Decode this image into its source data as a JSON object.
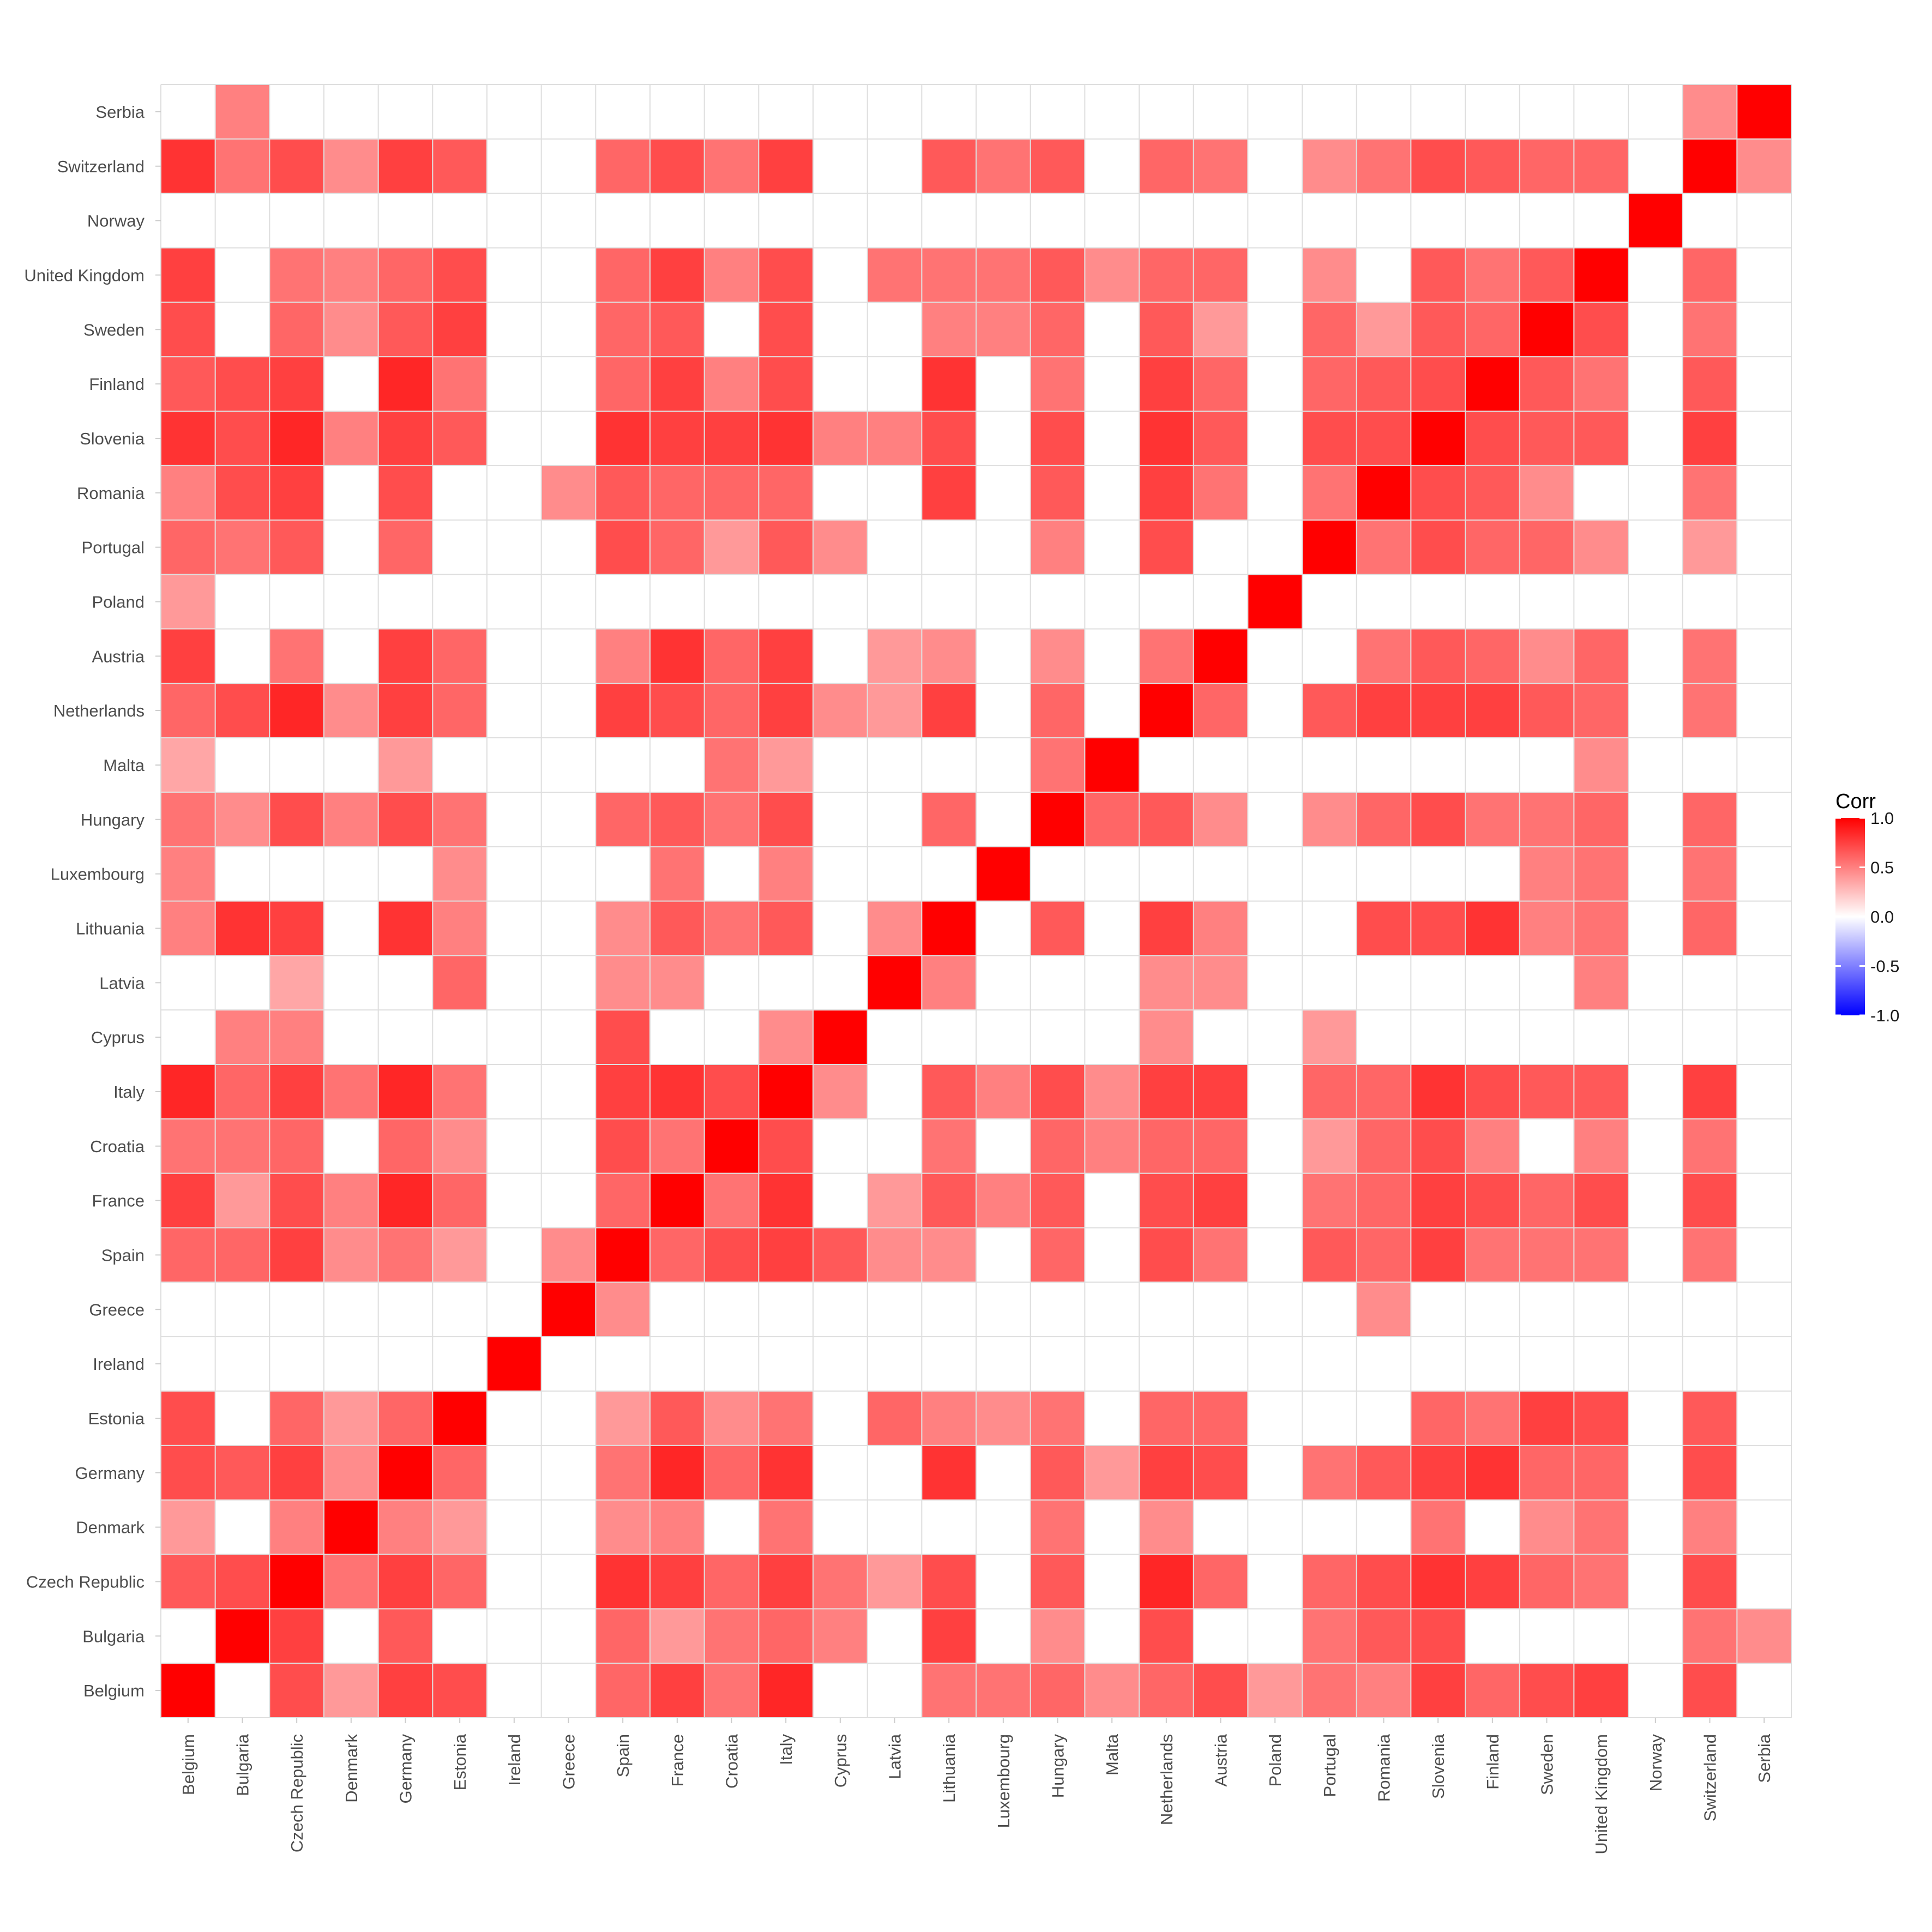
{
  "chart_data": {
    "type": "heatmap",
    "title": "",
    "xlabel": "",
    "ylabel": "",
    "categories": [
      "Belgium",
      "Bulgaria",
      "Czech Republic",
      "Denmark",
      "Germany",
      "Estonia",
      "Ireland",
      "Greece",
      "Spain",
      "France",
      "Croatia",
      "Italy",
      "Cyprus",
      "Latvia",
      "Lithuania",
      "Luxembourg",
      "Hungary",
      "Malta",
      "Netherlands",
      "Austria",
      "Poland",
      "Portugal",
      "Romania",
      "Slovenia",
      "Finland",
      "Sweden",
      "United Kingdom",
      "Norway",
      "Switzerland",
      "Serbia"
    ],
    "matrix": [
      [
        1.0,
        0.0,
        0.65,
        0.4,
        0.7,
        0.7,
        0.0,
        0.0,
        0.6,
        0.75,
        0.55,
        0.85,
        0.0,
        0.0,
        0.5,
        0.5,
        0.55,
        0.35,
        0.6,
        0.75,
        0.4,
        0.6,
        0.5,
        0.8,
        0.65,
        0.7,
        0.75,
        0.0,
        0.8,
        0.0
      ],
      [
        0.0,
        1.0,
        0.7,
        0.0,
        0.65,
        0.0,
        0.0,
        0.0,
        0.6,
        0.4,
        0.55,
        0.6,
        0.5,
        0.0,
        0.8,
        0.0,
        0.45,
        0.0,
        0.7,
        0.0,
        0.0,
        0.55,
        0.7,
        0.7,
        0.7,
        0.0,
        0.0,
        0.0,
        0.55,
        0.5
      ],
      [
        0.7,
        0.75,
        1.0,
        0.5,
        0.75,
        0.6,
        0.0,
        0.0,
        0.75,
        0.7,
        0.6,
        0.75,
        0.5,
        0.35,
        0.75,
        0.0,
        0.7,
        0.0,
        0.85,
        0.55,
        0.0,
        0.65,
        0.75,
        0.85,
        0.75,
        0.6,
        0.55,
        0.0,
        0.7,
        0.0
      ],
      [
        0.4,
        0.0,
        0.55,
        1.0,
        0.45,
        0.4,
        0.0,
        0.0,
        0.45,
        0.5,
        0.0,
        0.55,
        0.0,
        0.0,
        0.0,
        0.0,
        0.5,
        0.0,
        0.45,
        0.0,
        0.0,
        0.0,
        0.0,
        0.5,
        0.0,
        0.45,
        0.5,
        0.0,
        0.45,
        0.0
      ],
      [
        0.75,
        0.65,
        0.75,
        0.5,
        1.0,
        0.6,
        0.0,
        0.0,
        0.55,
        0.85,
        0.6,
        0.85,
        0.0,
        0.0,
        0.8,
        0.0,
        0.7,
        0.4,
        0.75,
        0.75,
        0.0,
        0.6,
        0.7,
        0.75,
        0.85,
        0.65,
        0.6,
        0.0,
        0.75,
        0.0
      ],
      [
        0.7,
        0.0,
        0.6,
        0.4,
        0.6,
        1.0,
        0.0,
        0.0,
        0.4,
        0.6,
        0.45,
        0.55,
        0.0,
        0.6,
        0.5,
        0.45,
        0.55,
        0.0,
        0.6,
        0.6,
        0.0,
        0.0,
        0.0,
        0.65,
        0.55,
        0.75,
        0.7,
        0.0,
        0.65,
        0.0
      ],
      [
        0.0,
        0.0,
        0.0,
        0.0,
        0.0,
        0.0,
        1.0,
        0.0,
        0.0,
        0.0,
        0.0,
        0.0,
        0.0,
        0.0,
        0.0,
        0.0,
        0.0,
        0.0,
        0.0,
        0.0,
        0.0,
        0.0,
        0.0,
        0.0,
        0.0,
        0.0,
        0.0,
        0.0,
        0.0,
        0.0
      ],
      [
        0.0,
        0.0,
        0.0,
        0.0,
        0.0,
        0.0,
        0.0,
        1.0,
        0.45,
        0.0,
        0.0,
        0.0,
        0.0,
        0.0,
        0.0,
        0.0,
        0.0,
        0.0,
        0.0,
        0.0,
        0.0,
        0.0,
        0.45,
        0.0,
        0.0,
        0.0,
        0.0,
        0.0,
        0.0,
        0.0
      ],
      [
        0.6,
        0.6,
        0.8,
        0.45,
        0.55,
        0.4,
        0.0,
        0.45,
        1.0,
        0.6,
        0.7,
        0.75,
        0.7,
        0.45,
        0.45,
        0.0,
        0.6,
        0.0,
        0.75,
        0.5,
        0.0,
        0.7,
        0.65,
        0.8,
        0.6,
        0.6,
        0.6,
        0.0,
        0.6,
        0.0
      ],
      [
        0.75,
        0.4,
        0.75,
        0.5,
        0.85,
        0.65,
        0.0,
        0.0,
        0.6,
        1.0,
        0.55,
        0.8,
        0.0,
        0.45,
        0.65,
        0.55,
        0.65,
        0.0,
        0.7,
        0.8,
        0.0,
        0.6,
        0.6,
        0.75,
        0.75,
        0.65,
        0.75,
        0.0,
        0.7,
        0.0
      ],
      [
        0.55,
        0.55,
        0.6,
        0.0,
        0.6,
        0.45,
        0.0,
        0.0,
        0.7,
        0.55,
        1.0,
        0.7,
        0.0,
        0.0,
        0.55,
        0.0,
        0.55,
        0.55,
        0.6,
        0.6,
        0.0,
        0.4,
        0.6,
        0.75,
        0.5,
        0.0,
        0.5,
        0.0,
        0.55,
        0.0
      ],
      [
        0.85,
        0.6,
        0.75,
        0.55,
        0.8,
        0.55,
        0.0,
        0.0,
        0.75,
        0.8,
        0.7,
        1.0,
        0.45,
        0.0,
        0.65,
        0.5,
        0.7,
        0.4,
        0.75,
        0.75,
        0.0,
        0.65,
        0.6,
        0.8,
        0.7,
        0.7,
        0.7,
        0.0,
        0.75,
        0.0
      ],
      [
        0.0,
        0.5,
        0.55,
        0.0,
        0.0,
        0.0,
        0.0,
        0.0,
        0.65,
        0.0,
        0.0,
        0.45,
        1.0,
        0.0,
        0.0,
        0.0,
        0.0,
        0.0,
        0.45,
        0.0,
        0.0,
        0.45,
        0.0,
        0.5,
        0.0,
        0.0,
        0.0,
        0.0,
        0.0,
        0.0
      ],
      [
        0.0,
        0.0,
        0.4,
        0.0,
        0.0,
        0.6,
        0.0,
        0.0,
        0.45,
        0.4,
        0.0,
        0.0,
        0.0,
        1.0,
        0.45,
        0.0,
        0.0,
        0.0,
        0.4,
        0.4,
        0.0,
        0.0,
        0.0,
        0.5,
        0.0,
        0.0,
        0.55,
        0.0,
        0.0,
        0.0
      ],
      [
        0.55,
        0.75,
        0.7,
        0.0,
        0.8,
        0.5,
        0.0,
        0.0,
        0.45,
        0.65,
        0.55,
        0.65,
        0.0,
        0.5,
        1.0,
        0.0,
        0.6,
        0.0,
        0.75,
        0.45,
        0.0,
        0.0,
        0.75,
        0.7,
        0.8,
        0.5,
        0.55,
        0.0,
        0.65,
        0.0
      ],
      [
        0.55,
        0.0,
        0.0,
        0.0,
        0.0,
        0.45,
        0.0,
        0.0,
        0.0,
        0.5,
        0.0,
        0.5,
        0.0,
        0.0,
        0.0,
        1.0,
        0.0,
        0.0,
        0.0,
        0.0,
        0.0,
        0.0,
        0.0,
        0.0,
        0.0,
        0.5,
        0.55,
        0.0,
        0.55,
        0.0
      ],
      [
        0.6,
        0.45,
        0.65,
        0.55,
        0.65,
        0.55,
        0.0,
        0.0,
        0.6,
        0.65,
        0.6,
        0.7,
        0.0,
        0.0,
        0.65,
        0.0,
        1.0,
        0.55,
        0.6,
        0.45,
        0.0,
        0.5,
        0.65,
        0.7,
        0.55,
        0.6,
        0.65,
        0.0,
        0.65,
        0.0
      ],
      [
        0.45,
        0.0,
        0.0,
        0.0,
        0.4,
        0.0,
        0.0,
        0.0,
        0.0,
        0.0,
        0.5,
        0.45,
        0.0,
        0.0,
        0.0,
        0.0,
        0.6,
        1.0,
        0.0,
        0.0,
        0.0,
        0.0,
        0.0,
        0.0,
        0.0,
        0.0,
        0.45,
        0.0,
        0.0,
        0.0
      ],
      [
        0.6,
        0.7,
        0.85,
        0.45,
        0.75,
        0.6,
        0.0,
        0.0,
        0.7,
        0.7,
        0.6,
        0.75,
        0.45,
        0.45,
        0.75,
        0.0,
        0.65,
        0.0,
        1.0,
        0.55,
        0.0,
        0.7,
        0.75,
        0.8,
        0.75,
        0.65,
        0.6,
        0.0,
        0.6,
        0.0
      ],
      [
        0.7,
        0.0,
        0.6,
        0.0,
        0.7,
        0.6,
        0.0,
        0.0,
        0.55,
        0.75,
        0.6,
        0.75,
        0.0,
        0.45,
        0.5,
        0.0,
        0.45,
        0.0,
        0.6,
        1.0,
        0.0,
        0.0,
        0.55,
        0.65,
        0.6,
        0.4,
        0.6,
        0.0,
        0.55,
        0.0
      ],
      [
        0.4,
        0.0,
        0.0,
        0.0,
        0.0,
        0.0,
        0.0,
        0.0,
        0.0,
        0.0,
        0.0,
        0.0,
        0.0,
        0.0,
        0.0,
        0.0,
        0.0,
        0.0,
        0.0,
        0.0,
        1.0,
        0.0,
        0.0,
        0.0,
        0.0,
        0.0,
        0.0,
        0.0,
        0.0,
        0.0
      ],
      [
        0.55,
        0.55,
        0.6,
        0.0,
        0.55,
        0.0,
        0.0,
        0.0,
        0.65,
        0.55,
        0.4,
        0.6,
        0.4,
        0.0,
        0.0,
        0.0,
        0.45,
        0.0,
        0.65,
        0.0,
        0.0,
        1.0,
        0.55,
        0.7,
        0.6,
        0.6,
        0.45,
        0.0,
        0.45,
        0.0
      ],
      [
        0.5,
        0.65,
        0.7,
        0.0,
        0.65,
        0.0,
        0.0,
        0.45,
        0.6,
        0.6,
        0.6,
        0.6,
        0.0,
        0.0,
        0.7,
        0.0,
        0.6,
        0.0,
        0.75,
        0.55,
        0.0,
        0.55,
        1.0,
        0.7,
        0.65,
        0.4,
        0.0,
        0.0,
        0.55,
        0.0
      ],
      [
        0.75,
        0.7,
        0.8,
        0.55,
        0.75,
        0.6,
        0.0,
        0.0,
        0.75,
        0.75,
        0.7,
        0.8,
        0.0,
        0.0,
        0.7,
        0.0,
        0.7,
        0.0,
        0.75,
        0.65,
        0.0,
        0.7,
        0.7,
        1.0,
        0.7,
        0.65,
        0.65,
        0.0,
        0.7,
        0.0
      ],
      [
        0.6,
        0.0,
        0.75,
        0.0,
        0.8,
        0.55,
        0.0,
        0.0,
        0.55,
        0.7,
        0.5,
        0.7,
        0.0,
        0.0,
        0.8,
        0.0,
        0.55,
        0.0,
        0.75,
        0.6,
        0.0,
        0.6,
        0.65,
        0.7,
        1.0,
        0.6,
        0.55,
        0.0,
        0.65,
        0.0
      ],
      [
        0.7,
        0.0,
        0.6,
        0.45,
        0.6,
        0.75,
        0.0,
        0.0,
        0.55,
        0.6,
        0.0,
        0.65,
        0.0,
        0.0,
        0.5,
        0.5,
        0.55,
        0.0,
        0.65,
        0.45,
        0.0,
        0.6,
        0.45,
        0.65,
        0.65,
        1.0,
        0.65,
        0.0,
        0.6,
        0.0
      ],
      [
        0.75,
        0.0,
        0.55,
        0.55,
        0.6,
        0.7,
        0.0,
        0.0,
        0.55,
        0.7,
        0.5,
        0.65,
        0.0,
        0.5,
        0.55,
        0.55,
        0.6,
        0.45,
        0.6,
        0.6,
        0.0,
        0.45,
        0.0,
        0.65,
        0.55,
        0.7,
        1.0,
        0.0,
        0.6,
        0.0
      ],
      [
        0.0,
        0.0,
        0.0,
        0.0,
        0.0,
        0.0,
        0.0,
        0.0,
        0.0,
        0.0,
        0.0,
        0.0,
        0.0,
        0.0,
        0.0,
        0.0,
        0.0,
        0.0,
        0.0,
        0.0,
        0.0,
        0.0,
        0.0,
        0.0,
        0.0,
        0.0,
        0.0,
        1.0,
        0.0,
        0.0
      ],
      [
        0.7,
        0.55,
        0.7,
        0.5,
        0.7,
        0.65,
        0.0,
        0.0,
        0.55,
        0.7,
        0.55,
        0.75,
        0.0,
        0.0,
        0.6,
        0.55,
        0.6,
        0.0,
        0.55,
        0.55,
        0.0,
        0.4,
        0.55,
        0.75,
        0.65,
        0.55,
        0.6,
        0.0,
        1.0,
        0.45
      ],
      [
        0.0,
        0.45,
        0.0,
        0.0,
        0.0,
        0.0,
        0.0,
        0.0,
        0.0,
        0.0,
        0.0,
        0.0,
        0.0,
        0.0,
        0.0,
        0.0,
        0.0,
        0.0,
        0.0,
        0.0,
        0.0,
        0.0,
        0.0,
        0.0,
        0.0,
        0.0,
        0.0,
        0.0,
        0.45,
        1.0
      ]
    ],
    "value_range": [
      -1,
      1
    ],
    "grid": true,
    "legend": {
      "title": "Corr",
      "placement": "right",
      "ticks": [
        "1.0",
        "0.5",
        "0.0",
        "-0.5",
        "-1.0"
      ],
      "tick_values": [
        1.0,
        0.5,
        0.0,
        -0.5,
        -1.0
      ]
    },
    "colors": {
      "high": "#ff0000",
      "mid": "#ffffff",
      "low": "#0000ff",
      "grid": "#dedede",
      "tick_text": "#4d4d4d"
    }
  }
}
